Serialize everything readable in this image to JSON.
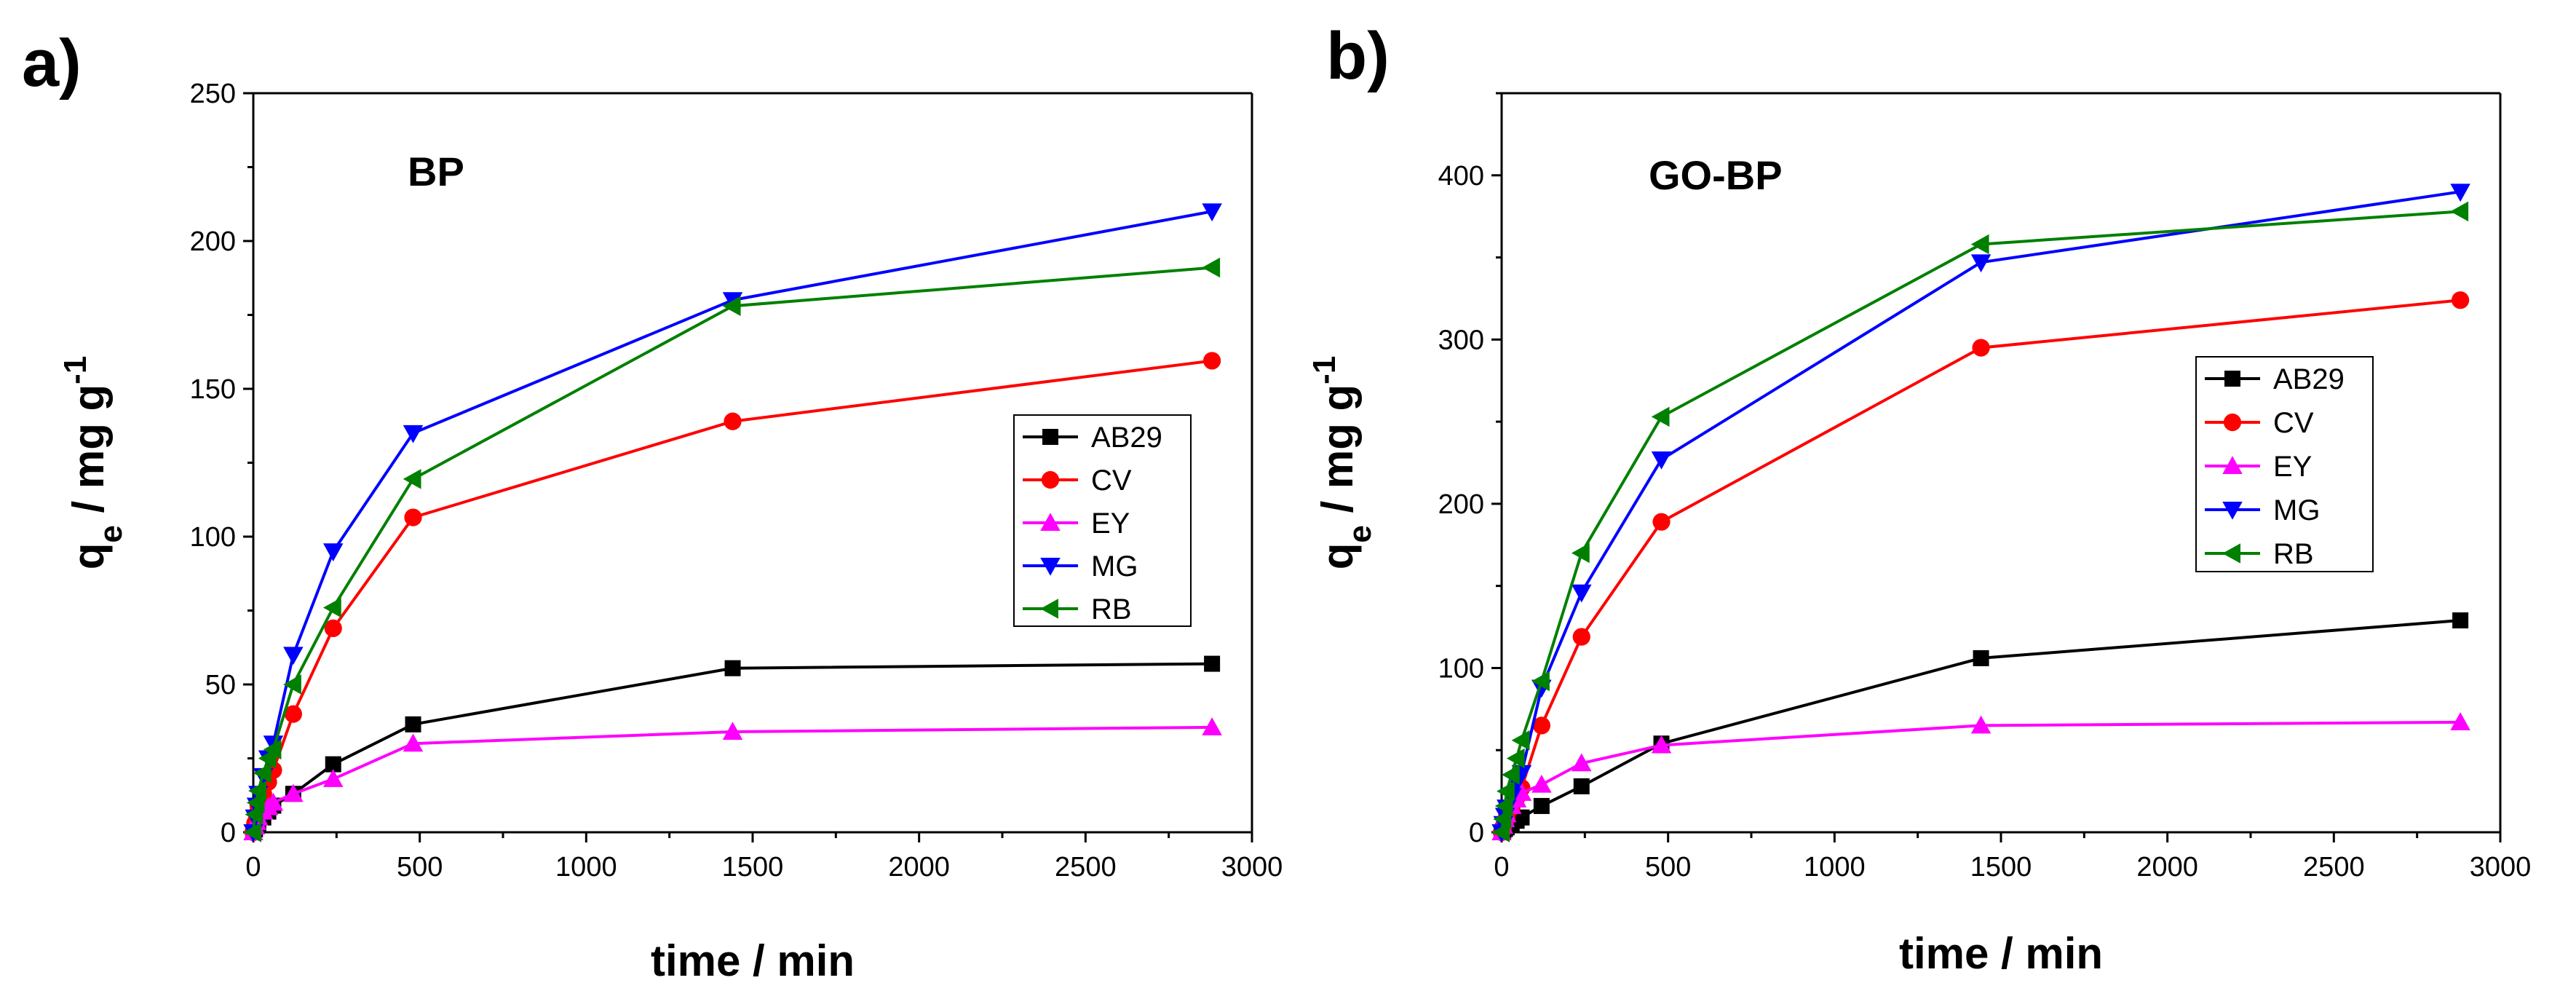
{
  "chart_data": [
    {
      "panel_label": "a)",
      "type": "line",
      "title": "BP",
      "xlabel": "time / min",
      "ylabel_main": "q",
      "ylabel_sub": "e",
      "ylabel_units": " / mg g",
      "ylabel_sup": "-1",
      "xlim": [
        0,
        3000
      ],
      "ylim": [
        0,
        250
      ],
      "xticks": [
        0,
        500,
        1000,
        1500,
        2000,
        2500,
        3000
      ],
      "yticks": [
        0,
        50,
        100,
        150,
        200,
        250
      ],
      "legend_position": "right-middle",
      "x": [
        0,
        5,
        10,
        15,
        30,
        45,
        60,
        120,
        240,
        480,
        1440,
        2880
      ],
      "series": [
        {
          "name": "AB29",
          "color": "#000000",
          "marker": "square",
          "values": [
            0,
            1,
            2,
            3,
            5,
            7,
            9,
            13,
            23,
            36.5,
            55.5,
            57
          ]
        },
        {
          "name": "CV",
          "color": "#ff0000",
          "marker": "circle",
          "values": [
            0,
            3,
            6,
            9,
            13,
            17,
            21,
            40,
            69,
            106.5,
            139,
            159.5
          ]
        },
        {
          "name": "EY",
          "color": "#ff00ff",
          "marker": "triangle-up",
          "values": [
            0,
            2,
            3.5,
            5,
            7,
            8.5,
            10,
            13,
            18,
            30,
            34,
            35.5
          ]
        },
        {
          "name": "MG",
          "color": "#0000ff",
          "marker": "triangle-down",
          "values": [
            0,
            5,
            9,
            13,
            19,
            25,
            30,
            60,
            95,
            135,
            180,
            210
          ]
        },
        {
          "name": "RB",
          "color": "#008000",
          "marker": "triangle-left",
          "values": [
            0,
            6,
            10,
            14,
            20,
            25,
            28,
            50,
            76,
            119.5,
            178,
            191
          ]
        }
      ]
    },
    {
      "panel_label": "b)",
      "type": "line",
      "title": "GO-BP",
      "xlabel": "time / min",
      "ylabel_main": "q",
      "ylabel_sub": "e",
      "ylabel_units": " / mg g",
      "ylabel_sup": "-1",
      "xlim": [
        0,
        3000
      ],
      "ylim": [
        0,
        450
      ],
      "xticks": [
        0,
        500,
        1000,
        1500,
        2000,
        2500,
        3000
      ],
      "yticks": [
        0,
        100,
        200,
        300,
        400
      ],
      "legend_position": "right-middle",
      "x": [
        0,
        5,
        10,
        15,
        30,
        45,
        60,
        120,
        240,
        480,
        1440,
        2880
      ],
      "series": [
        {
          "name": "AB29",
          "color": "#000000",
          "marker": "square",
          "values": [
            0,
            1,
            2,
            3,
            5,
            7,
            9,
            16,
            28,
            54,
            106,
            129
          ]
        },
        {
          "name": "CV",
          "color": "#ff0000",
          "marker": "circle",
          "values": [
            0,
            3,
            6,
            9,
            15,
            21,
            27,
            65,
            119,
            189,
            295,
            324
          ]
        },
        {
          "name": "EY",
          "color": "#ff00ff",
          "marker": "triangle-up",
          "values": [
            0,
            4,
            8,
            11,
            16,
            20,
            24,
            29,
            42,
            53,
            65,
            67
          ]
        },
        {
          "name": "MG",
          "color": "#0000ff",
          "marker": "triangle-down",
          "values": [
            0,
            5,
            10,
            15,
            22,
            30,
            36,
            88,
            146,
            227,
            347,
            390
          ]
        },
        {
          "name": "RB",
          "color": "#008000",
          "marker": "triangle-left",
          "values": [
            0,
            8,
            16,
            25,
            35,
            45,
            56,
            92,
            170,
            253,
            358,
            378
          ]
        }
      ]
    }
  ]
}
